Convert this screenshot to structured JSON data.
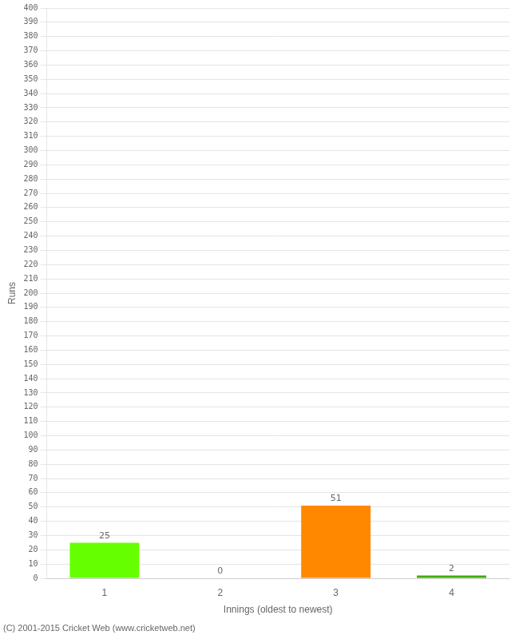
{
  "chart_data": {
    "type": "bar",
    "categories": [
      1,
      2,
      3,
      4
    ],
    "values": [
      25,
      0,
      51,
      2
    ],
    "colors": [
      "#66ff00",
      "#cccccc",
      "#ff8800",
      "#44aa00"
    ],
    "xlabel": "Innings (oldest to newest)",
    "ylabel": "Runs",
    "ylim": [
      0,
      400
    ],
    "yticks": [
      0,
      10,
      20,
      30,
      40,
      50,
      60,
      70,
      80,
      90,
      100,
      110,
      120,
      130,
      140,
      150,
      160,
      170,
      180,
      190,
      200,
      210,
      220,
      230,
      240,
      250,
      260,
      270,
      280,
      290,
      300,
      310,
      320,
      330,
      340,
      350,
      360,
      370,
      380,
      390,
      400
    ],
    "grid": true,
    "data_labels": true,
    "annotations": [
      "(C) 2001-2015 Cricket Web (www.cricketweb.net)"
    ]
  }
}
